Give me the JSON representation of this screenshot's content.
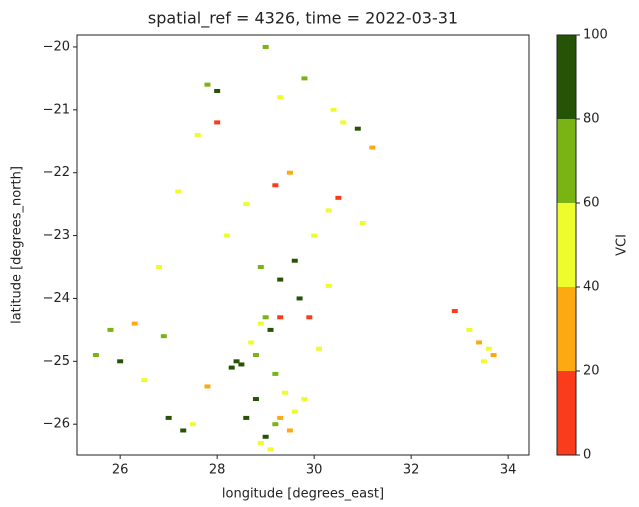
{
  "chart_data": {
    "type": "raster",
    "title": "spatial_ref = 4326, time = 2022-03-31",
    "x_label": "longitude [degrees_east]",
    "y_label": "latitude [degrees_north]",
    "xlim": [
      25.11,
      34.43
    ],
    "ylim": [
      -26.49,
      -19.81
    ],
    "xticks": [
      26,
      28,
      30,
      32,
      34
    ],
    "yticks": [
      {
        "value": -20,
        "label": "−20"
      },
      {
        "value": -21,
        "label": "−21"
      },
      {
        "value": -22,
        "label": "−22"
      },
      {
        "value": -23,
        "label": "−23"
      },
      {
        "value": -24,
        "label": "−24"
      },
      {
        "value": -25,
        "label": "−25"
      },
      {
        "value": -26,
        "label": "−26"
      }
    ],
    "colorbar": {
      "label": "VCI",
      "ticks": [
        0,
        20,
        40,
        60,
        80,
        100
      ],
      "colors": [
        "#fb3c1c",
        "#fdaa12",
        "#eefb2c",
        "#7ab314",
        "#265406"
      ]
    },
    "x": [
      29.0,
      29.2,
      28.9,
      29.5,
      29.6,
      29.3,
      29.8,
      29.4,
      28.6,
      28.4,
      28.8,
      28.5,
      28.3,
      29.1,
      29.0,
      28.7,
      29.3,
      29.6,
      29.9,
      30.1,
      30.3,
      30.6,
      30.9,
      31.2,
      30.4,
      29.8,
      28.0,
      27.6,
      27.2,
      26.8,
      26.3,
      25.8,
      25.5,
      26.0,
      26.5,
      27.0,
      27.5,
      27.8,
      28.2,
      28.6,
      29.2,
      29.5,
      30.0,
      30.3,
      29.7,
      28.9,
      29.0,
      29.3,
      33.4,
      33.6,
      33.5,
      33.2,
      32.9,
      33.7,
      28.0,
      27.8,
      28.9,
      29.2,
      30.5,
      31.0,
      26.9,
      27.3,
      29.3,
      28.8,
      29.1
    ],
    "y": [
      -26.2,
      -26.0,
      -26.3,
      -26.1,
      -25.8,
      -25.9,
      -25.6,
      -25.5,
      -25.9,
      -25.0,
      -24.9,
      -25.05,
      -25.1,
      -24.5,
      -24.3,
      -24.7,
      -23.7,
      -23.4,
      -24.3,
      -24.8,
      -22.6,
      -21.2,
      -21.3,
      -21.6,
      -21.0,
      -20.5,
      -21.2,
      -21.4,
      -22.3,
      -23.5,
      -24.4,
      -24.5,
      -24.9,
      -25.0,
      -25.3,
      -25.9,
      -26.0,
      -25.4,
      -23.0,
      -22.5,
      -22.2,
      -22.0,
      -23.0,
      -23.8,
      -24.0,
      -23.5,
      -20.0,
      -20.8,
      -24.7,
      -24.8,
      -25.0,
      -24.5,
      -24.2,
      -24.9,
      -20.7,
      -20.6,
      -24.4,
      -25.2,
      -22.4,
      -22.8,
      -24.6,
      -26.1,
      -24.3,
      -25.6,
      -26.4
    ],
    "values": [
      85,
      70,
      50,
      35,
      45,
      25,
      50,
      55,
      90,
      95,
      75,
      88,
      92,
      85,
      70,
      45,
      90,
      80,
      15,
      55,
      40,
      50,
      85,
      30,
      45,
      70,
      10,
      45,
      50,
      55,
      35,
      75,
      65,
      90,
      50,
      85,
      45,
      30,
      50,
      45,
      10,
      35,
      55,
      40,
      85,
      60,
      70,
      45,
      30,
      55,
      45,
      50,
      10,
      25,
      90,
      75,
      40,
      70,
      10,
      45,
      70,
      85,
      10,
      95,
      40
    ]
  }
}
